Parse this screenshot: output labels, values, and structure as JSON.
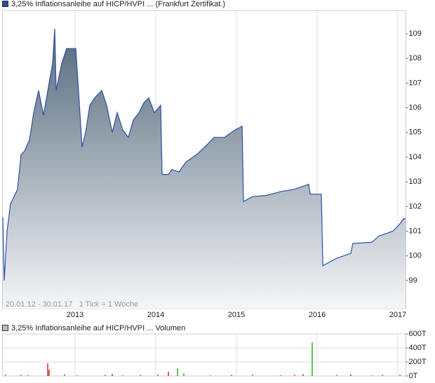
{
  "chart_data": [
    {
      "type": "area",
      "annotation": "20.01.12 - 30.01.17   1 Tick = 1 Woche",
      "series": [
        {
          "name": "3,25% Inflationsanleihe auf HICP/HVPI ... (Frankfurt Zertifikat.)",
          "color": "#2a4fa8",
          "x": [
            2012.104,
            2012.122,
            2012.157,
            2012.2,
            2012.287,
            2012.33,
            2012.374,
            2012.435,
            2012.487,
            2012.548,
            2012.609,
            2012.678,
            2012.722,
            2012.748,
            2012.765,
            2012.835,
            2012.896,
            2012.939,
            2013.009,
            2013.043,
            2013.087,
            2013.13,
            2013.183,
            2013.243,
            2013.33,
            2013.391,
            2013.461,
            2013.522,
            2013.591,
            2013.661,
            2013.722,
            2013.791,
            2013.852,
            2013.913,
            2013.983,
            2014.061,
            2014.078,
            2014.157,
            2014.2,
            2014.287,
            2014.374,
            2014.504,
            2014.635,
            2014.722,
            2014.852,
            2014.983,
            2015.07,
            2015.087,
            2015.2,
            2015.374,
            2015.548,
            2015.722,
            2015.896,
            2015.913,
            2016.052,
            2016.07,
            2016.243,
            2016.417,
            2016.443,
            2016.678,
            2016.765,
            2016.939,
            2017.026,
            2017.07,
            2017.096
          ],
          "values": [
            101.56,
            99.0,
            101.0,
            102.1,
            102.7,
            104.1,
            104.25,
            104.7,
            105.8,
            106.7,
            105.7,
            107.0,
            107.8,
            109.2,
            106.7,
            107.8,
            108.4,
            108.4,
            108.4,
            106.7,
            104.4,
            105.0,
            106.1,
            106.4,
            106.7,
            106.1,
            105.0,
            105.8,
            105.1,
            104.8,
            105.5,
            105.8,
            106.2,
            106.4,
            105.8,
            106.1,
            103.3,
            103.3,
            103.5,
            103.4,
            103.8,
            104.1,
            104.5,
            104.8,
            104.8,
            105.1,
            105.25,
            102.2,
            102.4,
            102.45,
            102.6,
            102.7,
            102.9,
            102.5,
            102.5,
            99.6,
            99.9,
            100.1,
            100.5,
            100.55,
            100.8,
            101.0,
            101.3,
            101.5,
            101.5
          ]
        }
      ],
      "xlim": [
        2012.1,
        2017.1
      ],
      "xticks": [
        2013,
        2014,
        2015,
        2016,
        2017
      ],
      "ylim": [
        97.86,
        109.94
      ],
      "yticks": [
        99,
        100,
        101,
        102,
        103,
        104,
        105,
        106,
        107,
        108,
        109
      ]
    },
    {
      "type": "bar",
      "series": [
        {
          "name": "3,25% Inflationsanleihe auf HICP/HVPI ... Volumen",
          "color": "#bbbbbb",
          "x": [
            2012.139,
            2012.33,
            2012.417,
            2012.661,
            2012.678,
            2012.87,
            2013.026,
            2013.374,
            2013.461,
            2013.591,
            2013.809,
            2014.026,
            2014.157,
            2014.27,
            2014.348,
            2014.678,
            2014.939,
            2015.2,
            2015.548,
            2015.722,
            2015.826,
            2015.939,
            2016.243,
            2016.417,
            2016.678,
            2016.809,
            2017.026
          ],
          "values": [
            20000,
            15000,
            10000,
            180000,
            90000,
            25000,
            10000,
            15000,
            30000,
            10000,
            15000,
            20000,
            60000,
            110000,
            40000,
            10000,
            15000,
            20000,
            10000,
            15000,
            25000,
            480000,
            15000,
            20000,
            10000,
            15000,
            20000
          ],
          "colors": [
            "#33aa33",
            "#dd2222",
            "#dd2222",
            "#dd2222",
            "#dd2222",
            "#33aa33",
            "#33aa33",
            "#dd2222",
            "#dd2222",
            "#33aa33",
            "#dd2222",
            "#dd2222",
            "#dd2222",
            "#33aa33",
            "#33aa33",
            "#33aa33",
            "#dd2222",
            "#33aa33",
            "#dd2222",
            "#dd2222",
            "#dd2222",
            "#33aa33",
            "#33aa33",
            "#dd2222",
            "#33aa33",
            "#dd2222",
            "#33aa33"
          ]
        }
      ],
      "xlim": [
        2012.1,
        2017.1
      ],
      "xticks": [
        2013,
        2014,
        2015,
        2016,
        2017
      ],
      "ylim": [
        0,
        600000
      ],
      "yticks": [
        {
          "value": 0,
          "label": "0T"
        },
        {
          "value": 200000,
          "label": "200T"
        },
        {
          "value": 400000,
          "label": "400T"
        },
        {
          "value": 600000,
          "label": "600T"
        }
      ]
    }
  ]
}
